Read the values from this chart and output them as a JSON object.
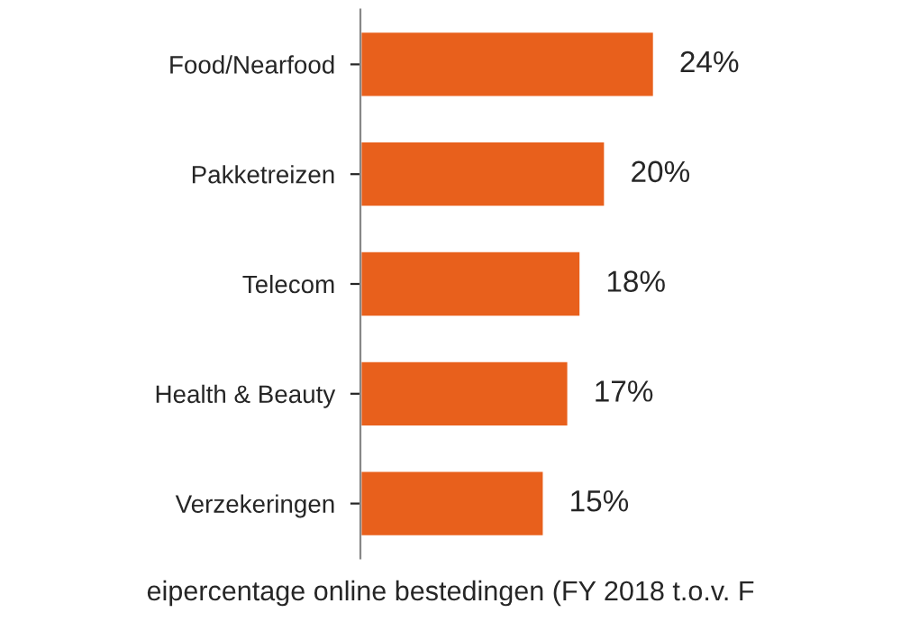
{
  "chart_data": {
    "type": "bar",
    "orientation": "horizontal",
    "categories": [
      "Food/Nearfood",
      "Pakketreizen",
      "Telecom",
      "Health & Beauty",
      "Verzekeringen"
    ],
    "values": [
      24,
      20,
      18,
      17,
      15
    ],
    "value_labels": [
      "24%",
      "20%",
      "18%",
      "17%",
      "15%"
    ],
    "color": "#e8601c",
    "xlabel": "eipercentage online bestedingen (FY 2018 t.o.v. F",
    "tick_labels": "y",
    "grid": false,
    "legend": false
  }
}
